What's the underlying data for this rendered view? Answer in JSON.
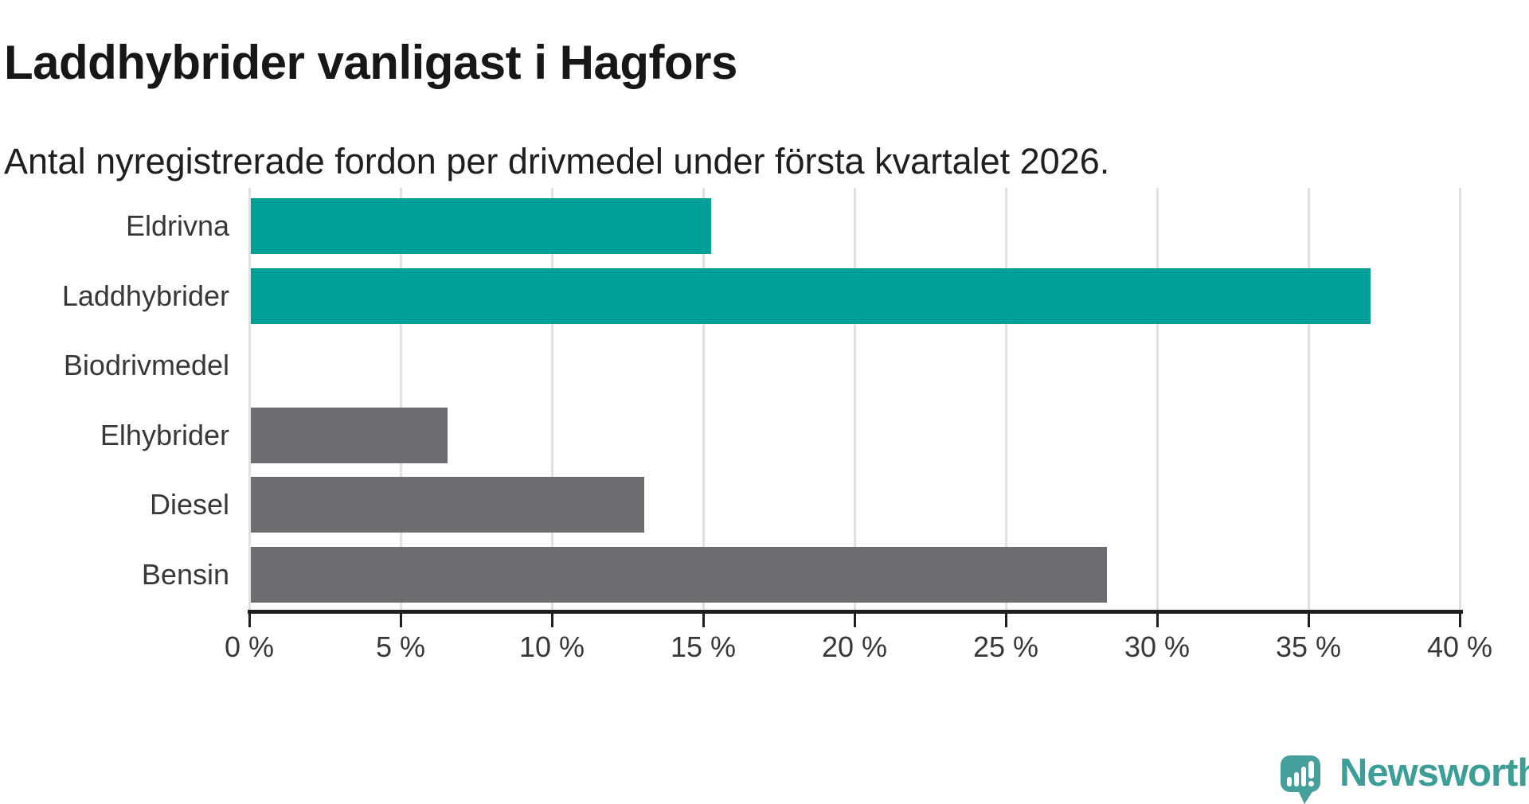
{
  "header": {
    "title": "Laddhybrider vanligast i Hagfors",
    "subtitle": "Antal nyregistrerade fordon per drivmedel under första kvartalet 2026."
  },
  "chart_data": {
    "type": "bar",
    "orientation": "horizontal",
    "title": "Laddhybrider vanligast i Hagfors",
    "subtitle": "Antal nyregistrerade fordon per drivmedel under första kvartalet 2026.",
    "categories": [
      "Eldrivna",
      "Laddhybrider",
      "Biodrivmedel",
      "Elhybrider",
      "Diesel",
      "Bensin"
    ],
    "values": [
      15.2,
      37,
      0,
      6.5,
      13,
      28.3
    ],
    "value_unit": "%",
    "xlabel": "",
    "ylabel": "",
    "xlim": [
      0,
      40
    ],
    "x_ticks": [
      0,
      5,
      10,
      15,
      20,
      25,
      30,
      35,
      40
    ],
    "x_tick_labels": [
      "0 %",
      "5 %",
      "10 %",
      "15 %",
      "20 %",
      "25 %",
      "30 %",
      "35 %",
      "40 %"
    ],
    "grid": true,
    "legend": false,
    "highlight_color": "#00a099",
    "default_color": "#6d6c71",
    "bar_colors": [
      "#00a099",
      "#00a099",
      "#6d6c71",
      "#6d6c71",
      "#6d6c71",
      "#6d6c71"
    ],
    "gridline_color": "#e1e1e1",
    "axis_color": "#1f1f1f"
  },
  "branding": {
    "logo_text": "Newsworthy",
    "logo_color": "#3d9e97",
    "logo_icon": "newsworthy-speech-bubble-chart-icon"
  }
}
